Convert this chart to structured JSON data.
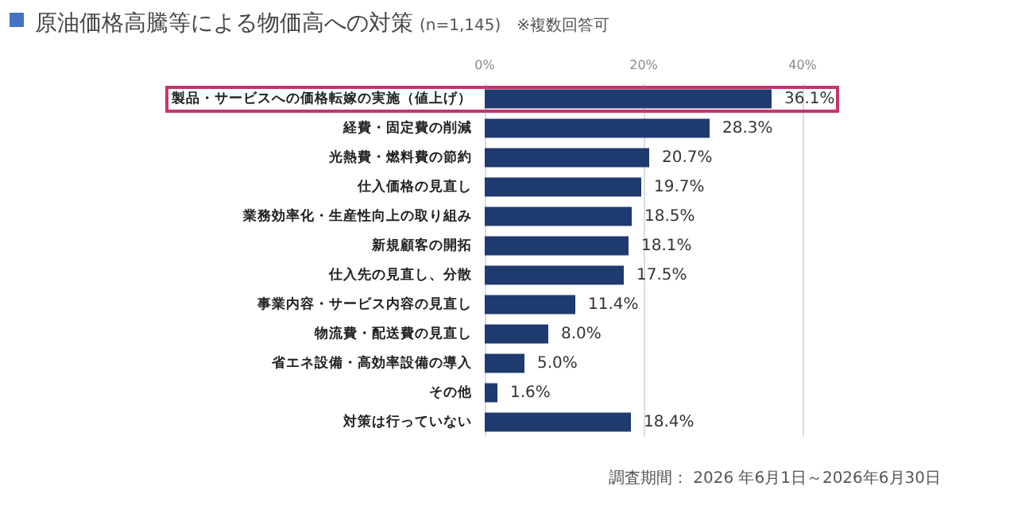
{
  "chart_data": {
    "type": "bar",
    "orientation": "horizontal",
    "title": "原油価格高騰等による物価高への対策",
    "subtitle": "(n=1,145)　※複数回答可",
    "categories": [
      "製品・サービスへの価格転嫁の実施（値上げ）",
      "経費・固定費の削減",
      "光熱費・燃料費の節約",
      "仕入価格の見直し",
      "業務効率化・生産性向上の取り組み",
      "新規顧客の開拓",
      "仕入先の見直し、分散",
      "事業内容・サービス内容の見直し",
      "物流費・配送費の見直し",
      "省エネ設備・高効率設備の導入",
      "その他",
      "対策は行っていない"
    ],
    "values": [
      36.1,
      28.3,
      20.7,
      19.7,
      18.5,
      18.1,
      17.5,
      11.4,
      8.0,
      5.0,
      1.6,
      18.4
    ],
    "value_labels": [
      "36.1%",
      "28.3%",
      "20.7%",
      "19.7%",
      "18.5%",
      "18.1%",
      "17.5%",
      "11.4%",
      "8.0%",
      "5.0%",
      "1.6%",
      "18.4%"
    ],
    "color": "#1f3a6e",
    "xlim": [
      0,
      40
    ],
    "xticks": [
      {
        "value": 0,
        "label": "0%"
      },
      {
        "value": 20,
        "label": "20%"
      },
      {
        "value": 40,
        "label": "40%"
      }
    ],
    "grid": "x",
    "annotations": [
      "調査期間： 2026 年6月1日～2026年6月30日"
    ]
  }
}
